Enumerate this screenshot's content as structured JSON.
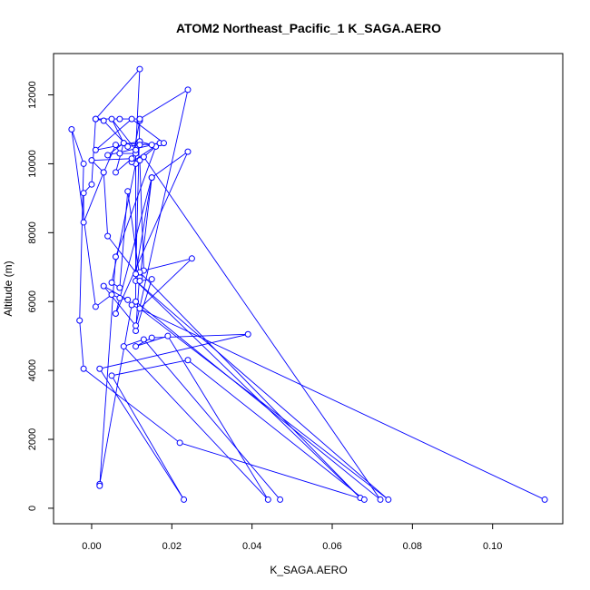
{
  "chart_data": {
    "type": "line",
    "title": "ATOM2 Northeast_Pacific_1 K_SAGA.AERO",
    "xlabel": "K_SAGA.AERO",
    "ylabel": "Altitude (m)",
    "xlim": [
      -0.0095,
      0.1175
    ],
    "ylim": [
      -450,
      13200
    ],
    "xticks": [
      0.0,
      0.02,
      0.04,
      0.06,
      0.08,
      0.1
    ],
    "xtick_labels": [
      "0.00",
      "0.02",
      "0.04",
      "0.06",
      "0.08",
      "0.10"
    ],
    "yticks": [
      0,
      2000,
      4000,
      6000,
      8000,
      10000,
      12000
    ],
    "ytick_labels": [
      "0",
      "2000",
      "4000",
      "6000",
      "8000",
      "10000",
      "12000"
    ],
    "grid": false,
    "markers": "open-circle",
    "color": "#0000ff",
    "series": [
      {
        "x": [
          0.113,
          0.01,
          0.002,
          0.002,
          0.006,
          0.016,
          0.013,
          0.072,
          0.011,
          0.011,
          0.007,
          0.006,
          0.003,
          0.004,
          0.012,
          0.009,
          0.007,
          0.005,
          0.011,
          0.012,
          0.013,
          0.025,
          0.012,
          0.074,
          0.011,
          0.067,
          0.012,
          0.011,
          0.015,
          0.012,
          0.015,
          0.024,
          0.006,
          0.015,
          0.011,
          0.012,
          0.01,
          0.017,
          0.004,
          0.008,
          0.005,
          0.011,
          0.012,
          0.001,
          0.0,
          -0.002,
          -0.002,
          0.003,
          0.0,
          0.01,
          0.006,
          0.008,
          0.015,
          0.012,
          0.001,
          0.01,
          0.018,
          0.012,
          0.009,
          0.003,
          0.001,
          0.007,
          0.012,
          0.024,
          0.011,
          0.003,
          0.009,
          0.007,
          0.005,
          0.001,
          -0.005,
          -0.002,
          -0.003,
          -0.002,
          0.022,
          0.068,
          0.024,
          0.005,
          0.023,
          0.002,
          0.039,
          0.015,
          0.011,
          0.019,
          0.044,
          0.008,
          0.013,
          0.047
        ],
        "y": [
          250,
          5900,
          700,
          650,
          7300,
          10500,
          10200,
          250,
          6000,
          10300,
          10300,
          10550,
          9750,
          7900,
          6700,
          9200,
          6400,
          6550,
          10000,
          10100,
          6900,
          7250,
          5800,
          250,
          6600,
          300,
          6850,
          5150,
          6650,
          6600,
          9600,
          10350,
          5650,
          9600,
          6800,
          11250,
          10050,
          10600,
          10250,
          10600,
          11300,
          10400,
          12750,
          11300,
          9400,
          9150,
          8300,
          9750,
          10100,
          10150,
          9750,
          10600,
          10550,
          10650,
          10400,
          11300,
          10600,
          10550,
          10500,
          11250,
          11300,
          11300,
          11300,
          12150,
          5300,
          6450,
          6050,
          6100,
          6200,
          5850,
          11000,
          10000,
          5450,
          4050,
          1900,
          250,
          4300,
          3850,
          250,
          4050,
          5050,
          4950,
          4700,
          5000,
          250,
          4700,
          4900,
          250
        ]
      }
    ]
  }
}
